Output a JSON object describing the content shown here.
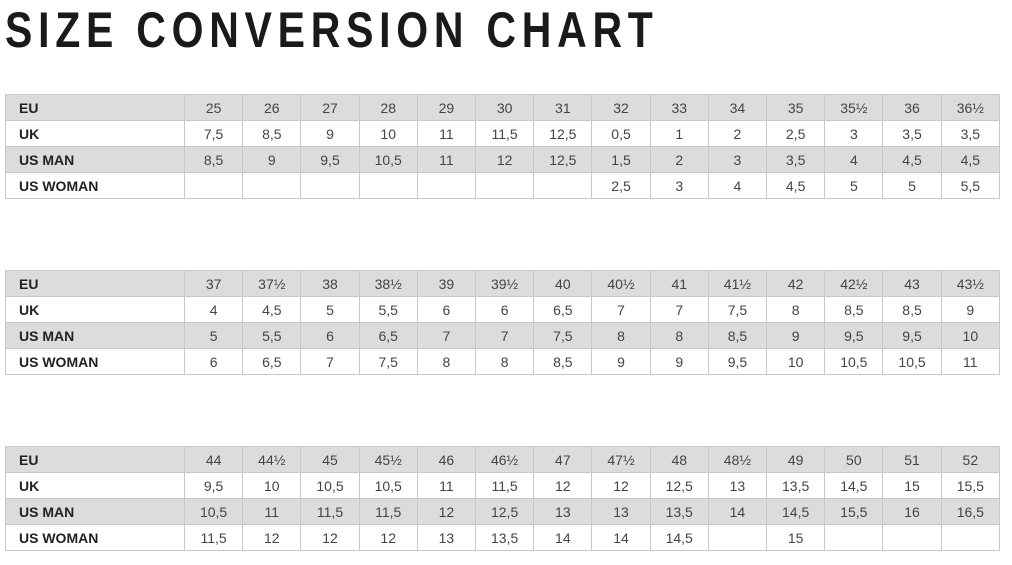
{
  "title": "SIZE CONVERSION CHART",
  "colors": {
    "shaded_row": "#dcdcdc",
    "border": "#c8c8c8"
  },
  "tables": [
    {
      "rows": [
        {
          "label": "EU",
          "values": [
            "25",
            "26",
            "27",
            "28",
            "29",
            "30",
            "31",
            "32",
            "33",
            "34",
            "35",
            "35½",
            "36",
            "36½"
          ]
        },
        {
          "label": "UK",
          "values": [
            "7,5",
            "8,5",
            "9",
            "10",
            "11",
            "11,5",
            "12,5",
            "0,5",
            "1",
            "2",
            "2,5",
            "3",
            "3,5",
            "3,5"
          ]
        },
        {
          "label": "US MAN",
          "values": [
            "8,5",
            "9",
            "9,5",
            "10,5",
            "11",
            "12",
            "12,5",
            "1,5",
            "2",
            "3",
            "3,5",
            "4",
            "4,5",
            "4,5"
          ]
        },
        {
          "label": "US WOMAN",
          "values": [
            "",
            "",
            "",
            "",
            "",
            "",
            "",
            "2,5",
            "3",
            "4",
            "4,5",
            "5",
            "5",
            "5,5"
          ]
        }
      ]
    },
    {
      "rows": [
        {
          "label": "EU",
          "values": [
            "37",
            "37½",
            "38",
            "38½",
            "39",
            "39½",
            "40",
            "40½",
            "41",
            "41½",
            "42",
            "42½",
            "43",
            "43½"
          ]
        },
        {
          "label": "UK",
          "values": [
            "4",
            "4,5",
            "5",
            "5,5",
            "6",
            "6",
            "6,5",
            "7",
            "7",
            "7,5",
            "8",
            "8,5",
            "8,5",
            "9"
          ]
        },
        {
          "label": "US MAN",
          "values": [
            "5",
            "5,5",
            "6",
            "6,5",
            "7",
            "7",
            "7,5",
            "8",
            "8",
            "8,5",
            "9",
            "9,5",
            "9,5",
            "10"
          ]
        },
        {
          "label": "US WOMAN",
          "values": [
            "6",
            "6,5",
            "7",
            "7,5",
            "8",
            "8",
            "8,5",
            "9",
            "9",
            "9,5",
            "10",
            "10,5",
            "10,5",
            "11"
          ]
        }
      ]
    },
    {
      "rows": [
        {
          "label": "EU",
          "values": [
            "44",
            "44½",
            "45",
            "45½",
            "46",
            "46½",
            "47",
            "47½",
            "48",
            "48½",
            "49",
            "50",
            "51",
            "52"
          ]
        },
        {
          "label": "UK",
          "values": [
            "9,5",
            "10",
            "10,5",
            "10,5",
            "11",
            "11,5",
            "12",
            "12",
            "12,5",
            "13",
            "13,5",
            "14,5",
            "15",
            "15,5"
          ]
        },
        {
          "label": "US MAN",
          "values": [
            "10,5",
            "11",
            "11,5",
            "11,5",
            "12",
            "12,5",
            "13",
            "13",
            "13,5",
            "14",
            "14,5",
            "15,5",
            "16",
            "16,5"
          ]
        },
        {
          "label": "US WOMAN",
          "values": [
            "11,5",
            "12",
            "12",
            "12",
            "13",
            "13,5",
            "14",
            "14",
            "14,5",
            "",
            "15",
            "",
            "",
            ""
          ]
        }
      ]
    }
  ]
}
